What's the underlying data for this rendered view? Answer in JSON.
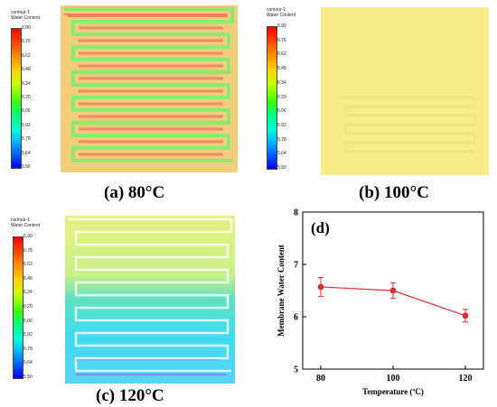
{
  "panels": [
    {
      "caption": "(a) 80°C",
      "legend_title_1": "contour-1",
      "legend_title_2": "Water Content",
      "ticks": [
        "6.90",
        "6.76",
        "6.62",
        "6.48",
        "6.34",
        "6.20",
        "6.06",
        "5.92",
        "5.78",
        "5.64",
        "5.50"
      ]
    },
    {
      "caption": "(b) 100°C",
      "legend_title_1": "contour-1",
      "legend_title_2": "Water Content",
      "ticks": [
        "6.90",
        "6.76",
        "6.62",
        "6.48",
        "6.34",
        "6.20",
        "6.06",
        "5.92",
        "5.78",
        "5.64",
        "5.50"
      ]
    },
    {
      "caption": "(c) 120°C",
      "legend_title_1": "contour-1",
      "legend_title_2": "Water Content",
      "ticks": [
        "6.90",
        "6.76",
        "6.62",
        "6.48",
        "6.34",
        "6.20",
        "6.06",
        "5.92",
        "5.78",
        "5.64",
        "5.50"
      ]
    }
  ],
  "colors": {
    "panel_a_background": "#f3ce7a",
    "panel_a_channel": "#80ee70",
    "panel_a_land": "#ef8565",
    "panel_b_background": "#f6ec8a",
    "panel_c_top": "#e4ee80",
    "panel_c_bottom": "#40d8f0",
    "series_line": "#e53030"
  },
  "chart_data": {
    "type": "line",
    "panel_label": "(d)",
    "xlabel": "Temperature (ºC)",
    "ylabel": "Membrane Water Content",
    "x": [
      80,
      100,
      120
    ],
    "y": [
      6.57,
      6.5,
      6.02
    ],
    "error": [
      0.18,
      0.15,
      0.12
    ],
    "xlim": [
      75,
      125
    ],
    "ylim": [
      5,
      8
    ],
    "xticks": [
      "80",
      "100",
      "120"
    ],
    "yticks": [
      "5",
      "6",
      "7",
      "8"
    ],
    "grid": false,
    "legend": "none"
  }
}
